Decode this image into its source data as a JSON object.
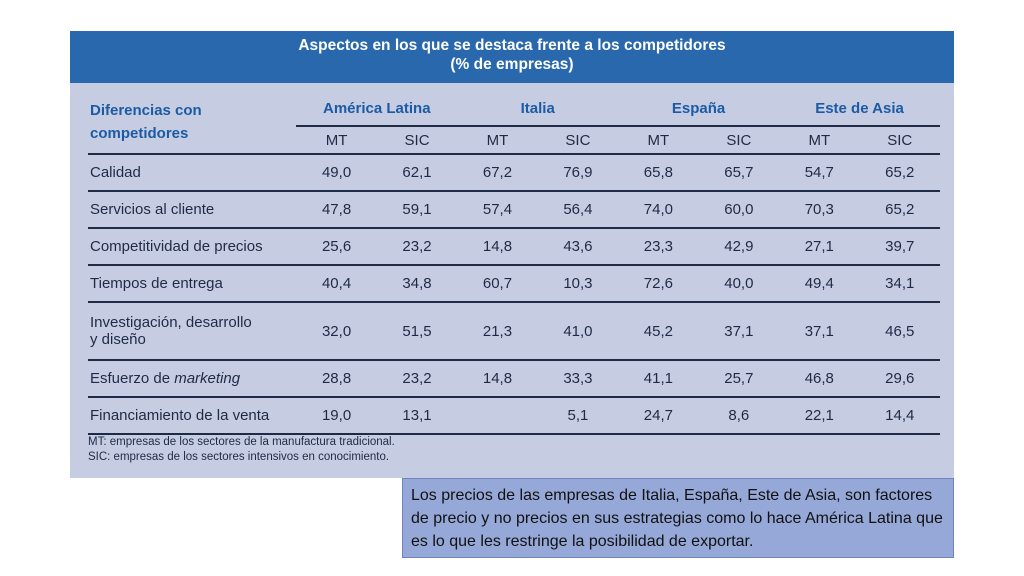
{
  "title": {
    "line1": "Aspectos en los que se destaca frente a los competidores",
    "line2": "(% de empresas)"
  },
  "row_header": {
    "line1": "Diferencias con",
    "line2": "competidores"
  },
  "groups": [
    "América Latina",
    "Italia",
    "España",
    "Este de Asia"
  ],
  "subheaders": [
    "MT",
    "SIC",
    "MT",
    "SIC",
    "MT",
    "SIC",
    "MT",
    "SIC"
  ],
  "rows": [
    {
      "label": "Calidad",
      "values": [
        "49,0",
        "62,1",
        "67,2",
        "76,9",
        "65,8",
        "65,7",
        "54,7",
        "65,2"
      ]
    },
    {
      "label": "Servicios al cliente",
      "values": [
        "47,8",
        "59,1",
        "57,4",
        "56,4",
        "74,0",
        "60,0",
        "70,3",
        "65,2"
      ]
    },
    {
      "label": "Competitividad de precios",
      "values": [
        "25,6",
        "23,2",
        "14,8",
        "43,6",
        "23,3",
        "42,9",
        "27,1",
        "39,7"
      ]
    },
    {
      "label": "Tiempos de entrega",
      "values": [
        "40,4",
        "34,8",
        "60,7",
        "10,3",
        "72,6",
        "40,0",
        "49,4",
        "34,1"
      ]
    },
    {
      "label": "Investigación, desarrollo",
      "label2": "y diseño",
      "values": [
        "32,0",
        "51,5",
        "21,3",
        "41,0",
        "45,2",
        "37,1",
        "37,1",
        "46,5"
      ]
    },
    {
      "label": "Esfuerzo de ",
      "label_italic": "marketing",
      "values": [
        "28,8",
        "23,2",
        "14,8",
        "33,3",
        "41,1",
        "25,7",
        "46,8",
        "29,6"
      ]
    },
    {
      "label": "Financiamiento de la venta",
      "values": [
        "19,0",
        "13,1",
        "",
        "5,1",
        "24,7",
        "8,6",
        "22,1",
        "14,4"
      ]
    }
  ],
  "footnotes": [
    "MT: empresas de los sectores de la manufactura tradicional.",
    "SIC: empresas de los sectores intensivos en conocimiento."
  ],
  "caption": "Los precios de las empresas de Italia, España, Este de Asia, son factores de precio y no precios en sus estrategias como lo hace América Latina que es lo que les restringe la posibilidad de exportar."
}
